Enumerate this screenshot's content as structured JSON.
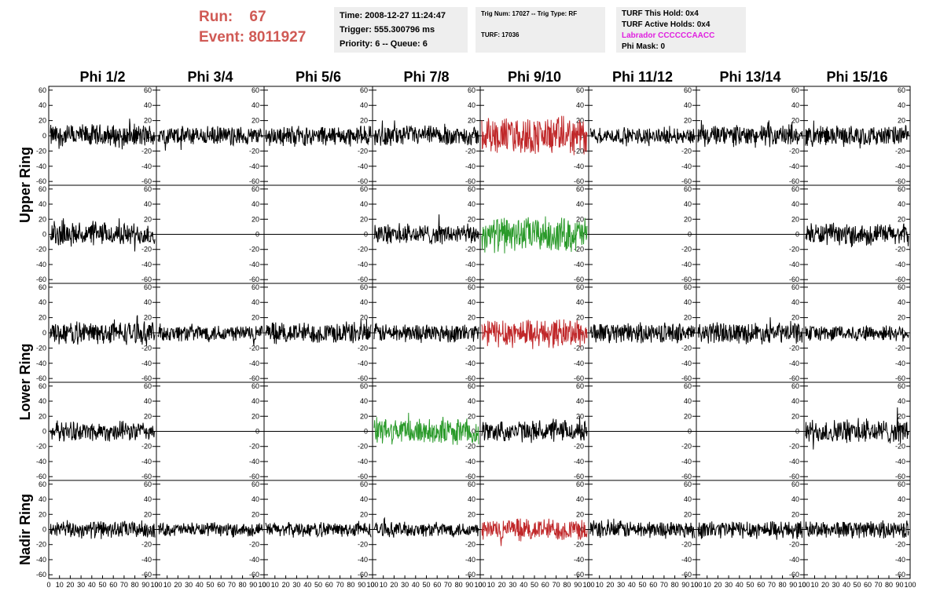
{
  "header": {
    "run_label": "Run:",
    "run_value": "67",
    "event_label": "Event:",
    "event_value": "8011927"
  },
  "time_box": {
    "time": "Time: 2008-12-27 11:24:47",
    "trigger": "Trigger: 555.300796 ms",
    "priority": "Priority: 6 -- Queue: 6"
  },
  "trig_box": {
    "line1": "Trig Num: 17027 -- Trig Type: RF",
    "line2": "TURF: 17036"
  },
  "turf_box": {
    "this_hold": "TURF This Hold: 0x4",
    "active_holds": "TURF Active Holds: 0x4",
    "labrador": "Labrador CCCCCCAACC",
    "phi_mask": "Phi Mask: 0"
  },
  "colors": {
    "header_red": "#d05a55",
    "labrador_magenta": "#e020e0",
    "trace_black": "#000000",
    "trace_red": "#c0282a",
    "trace_green": "#2a9a2a",
    "info_box_bg": "#eeeeee"
  },
  "chart_data": {
    "type": "line",
    "columns": [
      "Phi 1/2",
      "Phi 3/4",
      "Phi 5/6",
      "Phi 7/8",
      "Phi 9/10",
      "Phi 11/12",
      "Phi 13/14",
      "Phi 15/16"
    ],
    "rings": [
      {
        "name": "Upper Ring",
        "rows": 2
      },
      {
        "name": "Lower Ring",
        "rows": 2
      },
      {
        "name": "Nadir Ring",
        "rows": 1
      }
    ],
    "ylim": [
      -65,
      65
    ],
    "xlim": [
      0,
      100
    ],
    "y_ticks": [
      -60,
      -40,
      -20,
      0,
      20,
      40,
      60
    ],
    "x_ticks": [
      0,
      10,
      20,
      30,
      40,
      50,
      60,
      70,
      80,
      90,
      100
    ],
    "x_tick_labels": [
      "0",
      "10",
      "20",
      "30",
      "40",
      "50",
      "60",
      "70",
      "80",
      "90",
      "100"
    ],
    "y_tick_labels": [
      "-60",
      "-40",
      "-20",
      "0",
      "20",
      "40",
      "60"
    ],
    "panels": [
      [
        {
          "state": "noise",
          "color": "black",
          "amp": 17
        },
        {
          "state": "noise",
          "color": "black",
          "amp": 14
        },
        {
          "state": "noise",
          "color": "black",
          "amp": 15
        },
        {
          "state": "noise",
          "color": "black",
          "amp": 15
        },
        {
          "state": "noise",
          "color": "red",
          "amp": 28
        },
        {
          "state": "noise",
          "color": "black",
          "amp": 12
        },
        {
          "state": "noise",
          "color": "black",
          "amp": 16
        },
        {
          "state": "noise",
          "color": "black",
          "amp": 15
        }
      ],
      [
        {
          "state": "noise",
          "color": "black",
          "amp": 17
        },
        {
          "state": "flat",
          "color": "black",
          "amp": 0
        },
        {
          "state": "flat",
          "color": "black",
          "amp": 0
        },
        {
          "state": "noise",
          "color": "black",
          "amp": 15
        },
        {
          "state": "noise",
          "color": "green",
          "amp": 26
        },
        {
          "state": "flat",
          "color": "black",
          "amp": 0
        },
        {
          "state": "flat",
          "color": "black",
          "amp": 0
        },
        {
          "state": "noise",
          "color": "black",
          "amp": 16
        }
      ],
      [
        {
          "state": "noise",
          "color": "black",
          "amp": 17
        },
        {
          "state": "noise",
          "color": "black",
          "amp": 13
        },
        {
          "state": "noise",
          "color": "black",
          "amp": 16
        },
        {
          "state": "noise",
          "color": "black",
          "amp": 14
        },
        {
          "state": "noise",
          "color": "red",
          "amp": 22
        },
        {
          "state": "noise",
          "color": "black",
          "amp": 15
        },
        {
          "state": "noise",
          "color": "black",
          "amp": 16
        },
        {
          "state": "noise",
          "color": "black",
          "amp": 12
        }
      ],
      [
        {
          "state": "noise",
          "color": "black",
          "amp": 15
        },
        {
          "state": "flat",
          "color": "black",
          "amp": 0
        },
        {
          "state": "flat",
          "color": "black",
          "amp": 0
        },
        {
          "state": "noise",
          "color": "green",
          "amp": 20
        },
        {
          "state": "noise",
          "color": "black",
          "amp": 16
        },
        {
          "state": "flat",
          "color": "black",
          "amp": 0
        },
        {
          "state": "flat",
          "color": "black",
          "amp": 0
        },
        {
          "state": "noise",
          "color": "black",
          "amp": 18
        }
      ],
      [
        {
          "state": "noise",
          "color": "black",
          "amp": 13
        },
        {
          "state": "noise",
          "color": "black",
          "amp": 10
        },
        {
          "state": "noise",
          "color": "black",
          "amp": 11
        },
        {
          "state": "noise",
          "color": "black",
          "amp": 11
        },
        {
          "state": "noise",
          "color": "red",
          "amp": 17
        },
        {
          "state": "noise",
          "color": "black",
          "amp": 13
        },
        {
          "state": "noise",
          "color": "black",
          "amp": 14
        },
        {
          "state": "noise",
          "color": "black",
          "amp": 13
        }
      ]
    ]
  }
}
